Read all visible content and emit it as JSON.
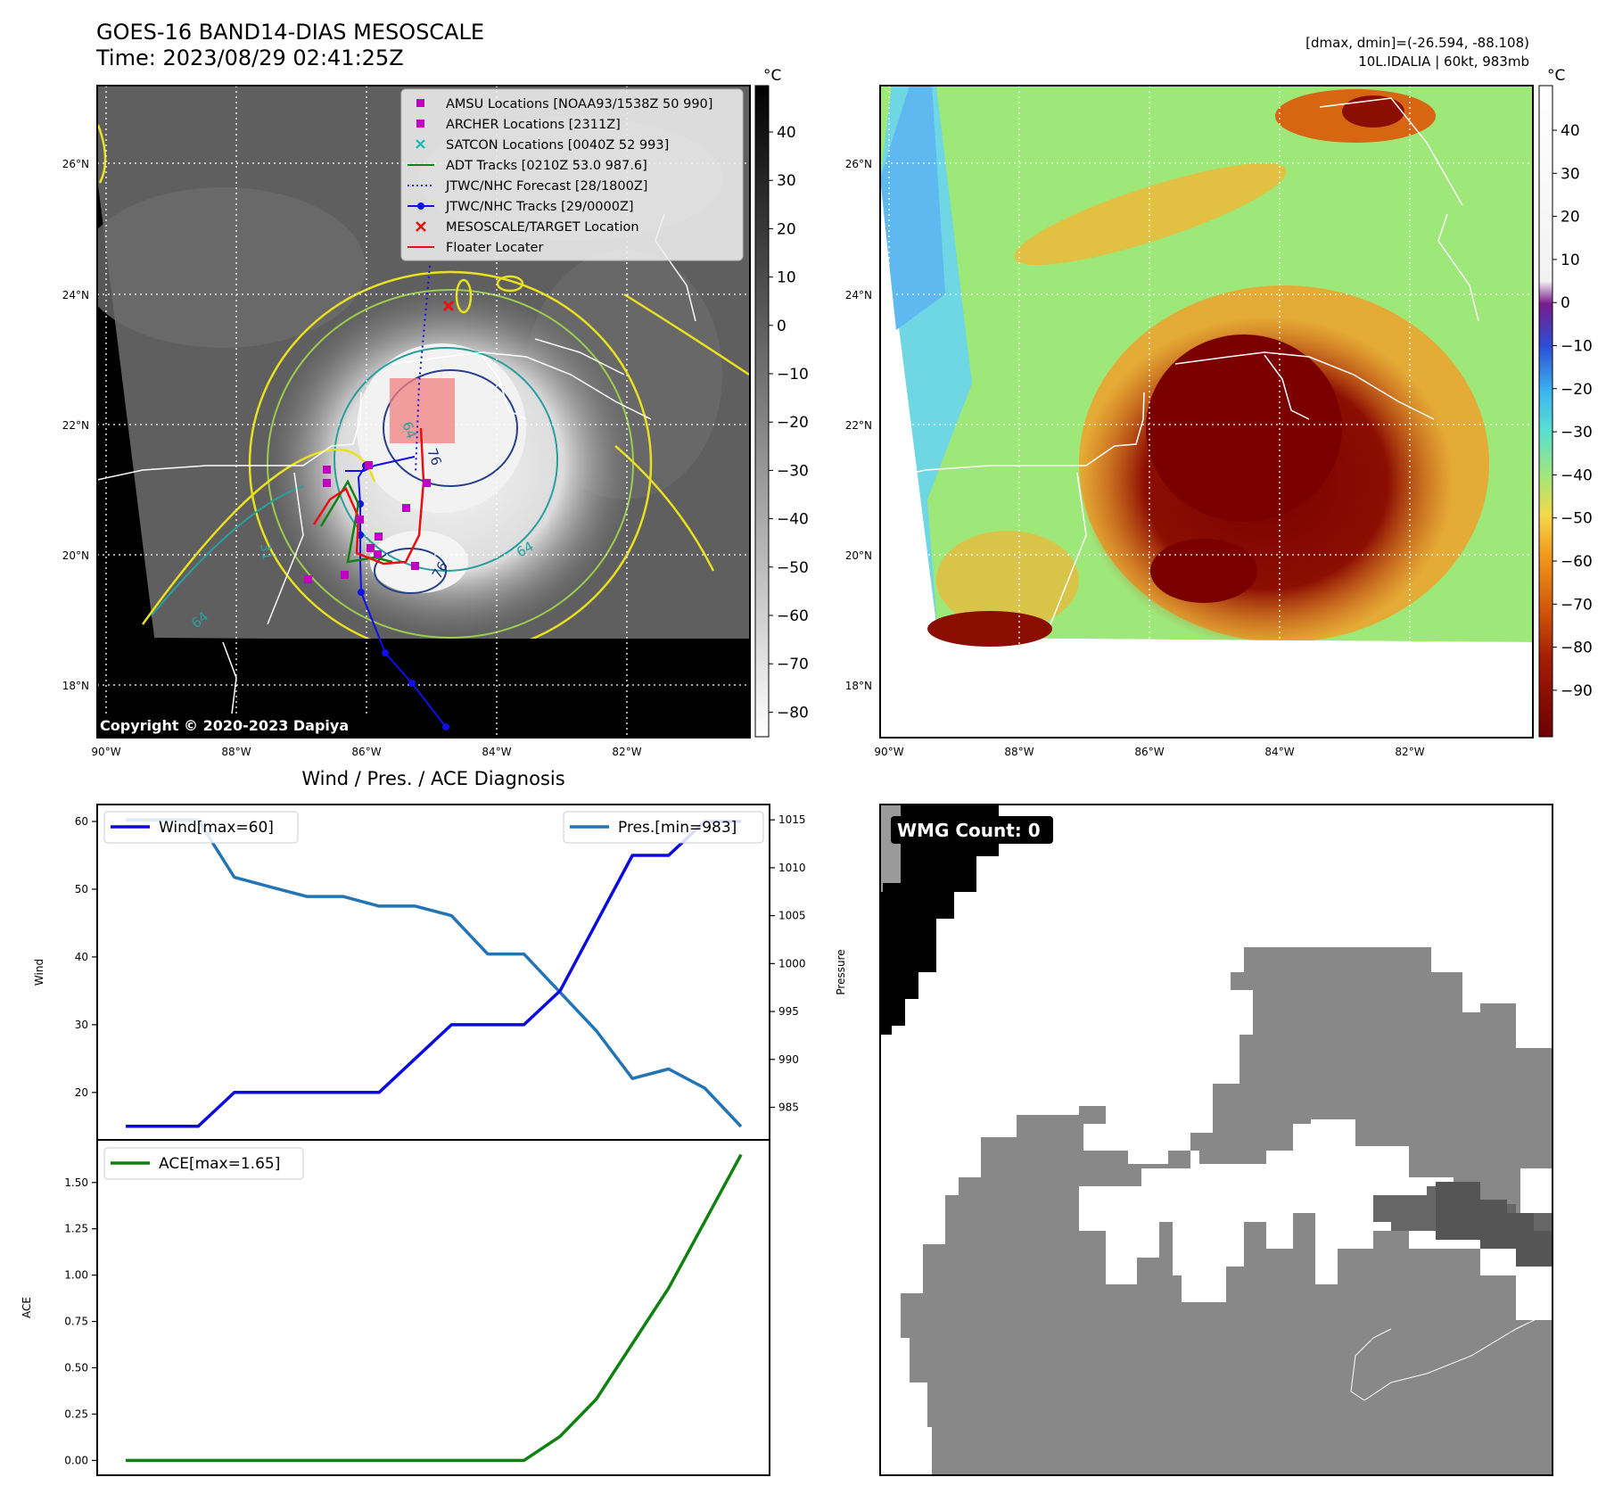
{
  "colors": {
    "amsu": "#c000c0",
    "archer": "#c000c0",
    "satcon": "#17b8b8",
    "adt": "#138013",
    "jtwc": "#1010e8",
    "target": "#e81010",
    "floater": "#e81010",
    "wind_line": "#0b0be0",
    "pres_line": "#2374b4",
    "ace_line": "#108010",
    "wmg_badge": "#000000"
  },
  "panel1": {
    "title_line1": "GOES-16 BAND14-DIAS MESOSCALE",
    "title_line2": "Time: 2023/08/29 02:41:25Z",
    "cbar_unit": "°C",
    "cbar_ticks": [
      "40",
      "30",
      "20",
      "10",
      "0",
      "−10",
      "−20",
      "−30",
      "−40",
      "−50",
      "−60",
      "−70",
      "−80"
    ],
    "lat_labels": [
      "26°N",
      "24°N",
      "22°N",
      "20°N",
      "18°N"
    ],
    "lon_labels": [
      "90°W",
      "88°W",
      "86°W",
      "84°W",
      "82°W"
    ],
    "copyright": "Copyright © 2020-2023 Dapiya",
    "legend": [
      {
        "label": "AMSU Locations [NOAA93/1538Z 50 990]",
        "icon": "square-marker"
      },
      {
        "label": "ARCHER Locations [2311Z]",
        "icon": "square-marker"
      },
      {
        "label": "SATCON Locations [0040Z 52 993]",
        "icon": "x-marker"
      },
      {
        "label": "ADT Tracks [0210Z 53.0 987.6]",
        "icon": "solid-line"
      },
      {
        "label": "JTWC/NHC Forecast [28/1800Z]",
        "icon": "dotted-line"
      },
      {
        "label": "JTWC/NHC Tracks [29/0000Z]",
        "icon": "line-dot"
      },
      {
        "label": "MESOSCALE/TARGET Location",
        "icon": "x-marker"
      },
      {
        "label": "Floater Locater",
        "icon": "solid-line"
      }
    ],
    "contour_labels": [
      "64",
      "76",
      "64",
      "76",
      "31",
      "64"
    ]
  },
  "panel2": {
    "info_line1": "[dmax, dmin]=(-26.594, -88.108)",
    "info_line2": "10L.IDALIA | 60kt, 983mb",
    "cbar_unit": "°C",
    "cbar_ticks": [
      "40",
      "30",
      "20",
      "10",
      "0",
      "−10",
      "−20",
      "−30",
      "−40",
      "−50",
      "−60",
      "−70",
      "−80",
      "−90"
    ],
    "lat_labels": [
      "26°N",
      "24°N",
      "22°N",
      "20°N",
      "18°N"
    ],
    "lon_labels": [
      "90°W",
      "88°W",
      "86°W",
      "84°W",
      "82°W"
    ]
  },
  "panel4": {
    "badge": "WMG Count: 0"
  },
  "chart_data": [
    {
      "type": "line",
      "title": "Wind / Pres. / ACE Diagnosis",
      "ylabel": "Wind",
      "y2label": "Pressure",
      "ylim": [
        13,
        62.5
      ],
      "y2lim": [
        981.6,
        1016.6
      ],
      "yticks": [
        20,
        30,
        40,
        50,
        60
      ],
      "y2ticks": [
        985,
        990,
        995,
        1000,
        1005,
        1010,
        1015
      ],
      "x": [
        0,
        1,
        2,
        3,
        4,
        5,
        6,
        7,
        8,
        9,
        10,
        11,
        12,
        13,
        14,
        15,
        16,
        17
      ],
      "series": [
        {
          "name": "Wind[max=60]",
          "axis": "left",
          "values": [
            15,
            15,
            15,
            20,
            20,
            20,
            20,
            20,
            25,
            30,
            30,
            30,
            35,
            45,
            55,
            55,
            60,
            60
          ]
        },
        {
          "name": "Pres.[min=983]",
          "axis": "right",
          "values": [
            1015,
            1015,
            1015,
            1009,
            1008,
            1007,
            1007,
            1006,
            1006,
            1005,
            1001,
            1001,
            997,
            993,
            988,
            989,
            987,
            983
          ]
        }
      ]
    },
    {
      "type": "line",
      "ylabel": "ACE",
      "ylim": [
        -0.08,
        1.73
      ],
      "yticks": [
        "0.00",
        "0.25",
        "0.50",
        "0.75",
        "1.00",
        "1.25",
        "1.50"
      ],
      "x": [
        0,
        1,
        2,
        3,
        4,
        5,
        6,
        7,
        8,
        9,
        10,
        11,
        12,
        13,
        14,
        15,
        16,
        17
      ],
      "series": [
        {
          "name": "ACE[max=1.65]",
          "values": [
            0,
            0,
            0,
            0,
            0,
            0,
            0,
            0,
            0,
            0,
            0,
            0,
            0.13,
            0.33,
            0.63,
            0.93,
            1.29,
            1.65
          ]
        }
      ]
    }
  ]
}
